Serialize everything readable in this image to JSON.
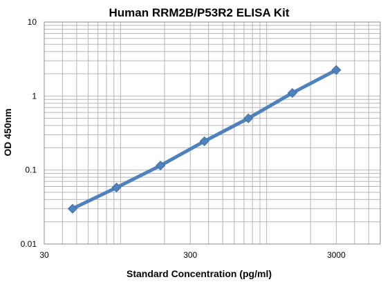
{
  "chart_data": {
    "type": "line",
    "title": "Human RRM2B/P53R2 ELISA Kit",
    "xlabel": "Standard Concentration (pg/ml)",
    "ylabel": "OD 450nm",
    "x_scale": "log",
    "y_scale": "log",
    "xlim": [
      30,
      6000
    ],
    "ylim": [
      0.01,
      10
    ],
    "x_tick_labels": [
      "30",
      "300",
      "3000"
    ],
    "y_tick_labels": [
      "10",
      "1",
      "0.1",
      "0.01"
    ],
    "grid": true,
    "series": [
      {
        "x": [
          46.875,
          93.75,
          187.5,
          375,
          750,
          1500,
          3000
        ],
        "y": [
          0.03,
          0.058,
          0.115,
          0.245,
          0.5,
          1.1,
          2.25
        ],
        "color": "#4f81bd",
        "marker": "diamond"
      }
    ]
  }
}
